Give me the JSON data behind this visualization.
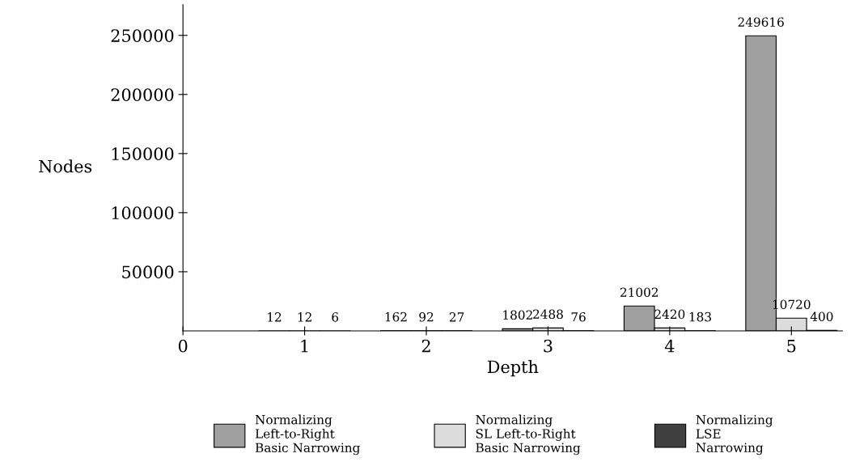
{
  "chart_data": {
    "type": "bar",
    "xlabel": "Depth",
    "ylabel": "Nodes",
    "x": [
      1,
      2,
      3,
      4,
      5
    ],
    "series": [
      {
        "name": "Normalizing\nLeft-to-Right\nBasic Narrowing",
        "color": "#a0a0a0",
        "values": [
          12,
          162,
          1802,
          21002,
          249616
        ]
      },
      {
        "name": "Normalizing\nSL Left-to-Right\nBasic Narrowing",
        "color": "#dcdcdc",
        "values": [
          12,
          92,
          2488,
          2420,
          10720
        ]
      },
      {
        "name": "Normalizing\nLSE\nNarrowing",
        "color": "#404040",
        "values": [
          6,
          27,
          76,
          183,
          400
        ]
      }
    ],
    "xlim": [
      0,
      5.42
    ],
    "xticks": [
      0,
      1,
      2,
      3,
      4,
      5
    ],
    "ylim": [
      0,
      276000
    ],
    "yticks": [
      50000,
      100000,
      150000,
      200000,
      250000
    ],
    "data_labels": true,
    "legend": "bottom",
    "grid": false
  }
}
